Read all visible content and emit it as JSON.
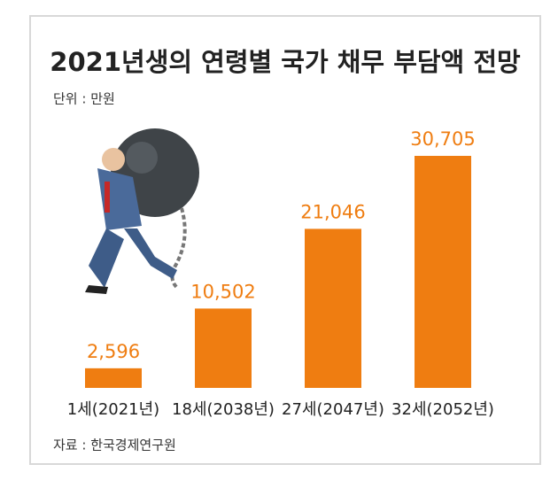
{
  "chart_data": {
    "type": "bar",
    "title": "2021년생의 연령별 국가 채무 부담액 전망",
    "subtitle": "단위 : 만원",
    "source": "자료 : 한국경제연구원",
    "categories": [
      "1세(2021년)",
      "18세(2038년)",
      "27세(2047년)",
      "32세(2052년)"
    ],
    "values": [
      2596,
      10502,
      21046,
      30705
    ],
    "value_labels": [
      "2,596",
      "10,502",
      "21,046",
      "30,705"
    ],
    "color": "#ef7d11"
  }
}
